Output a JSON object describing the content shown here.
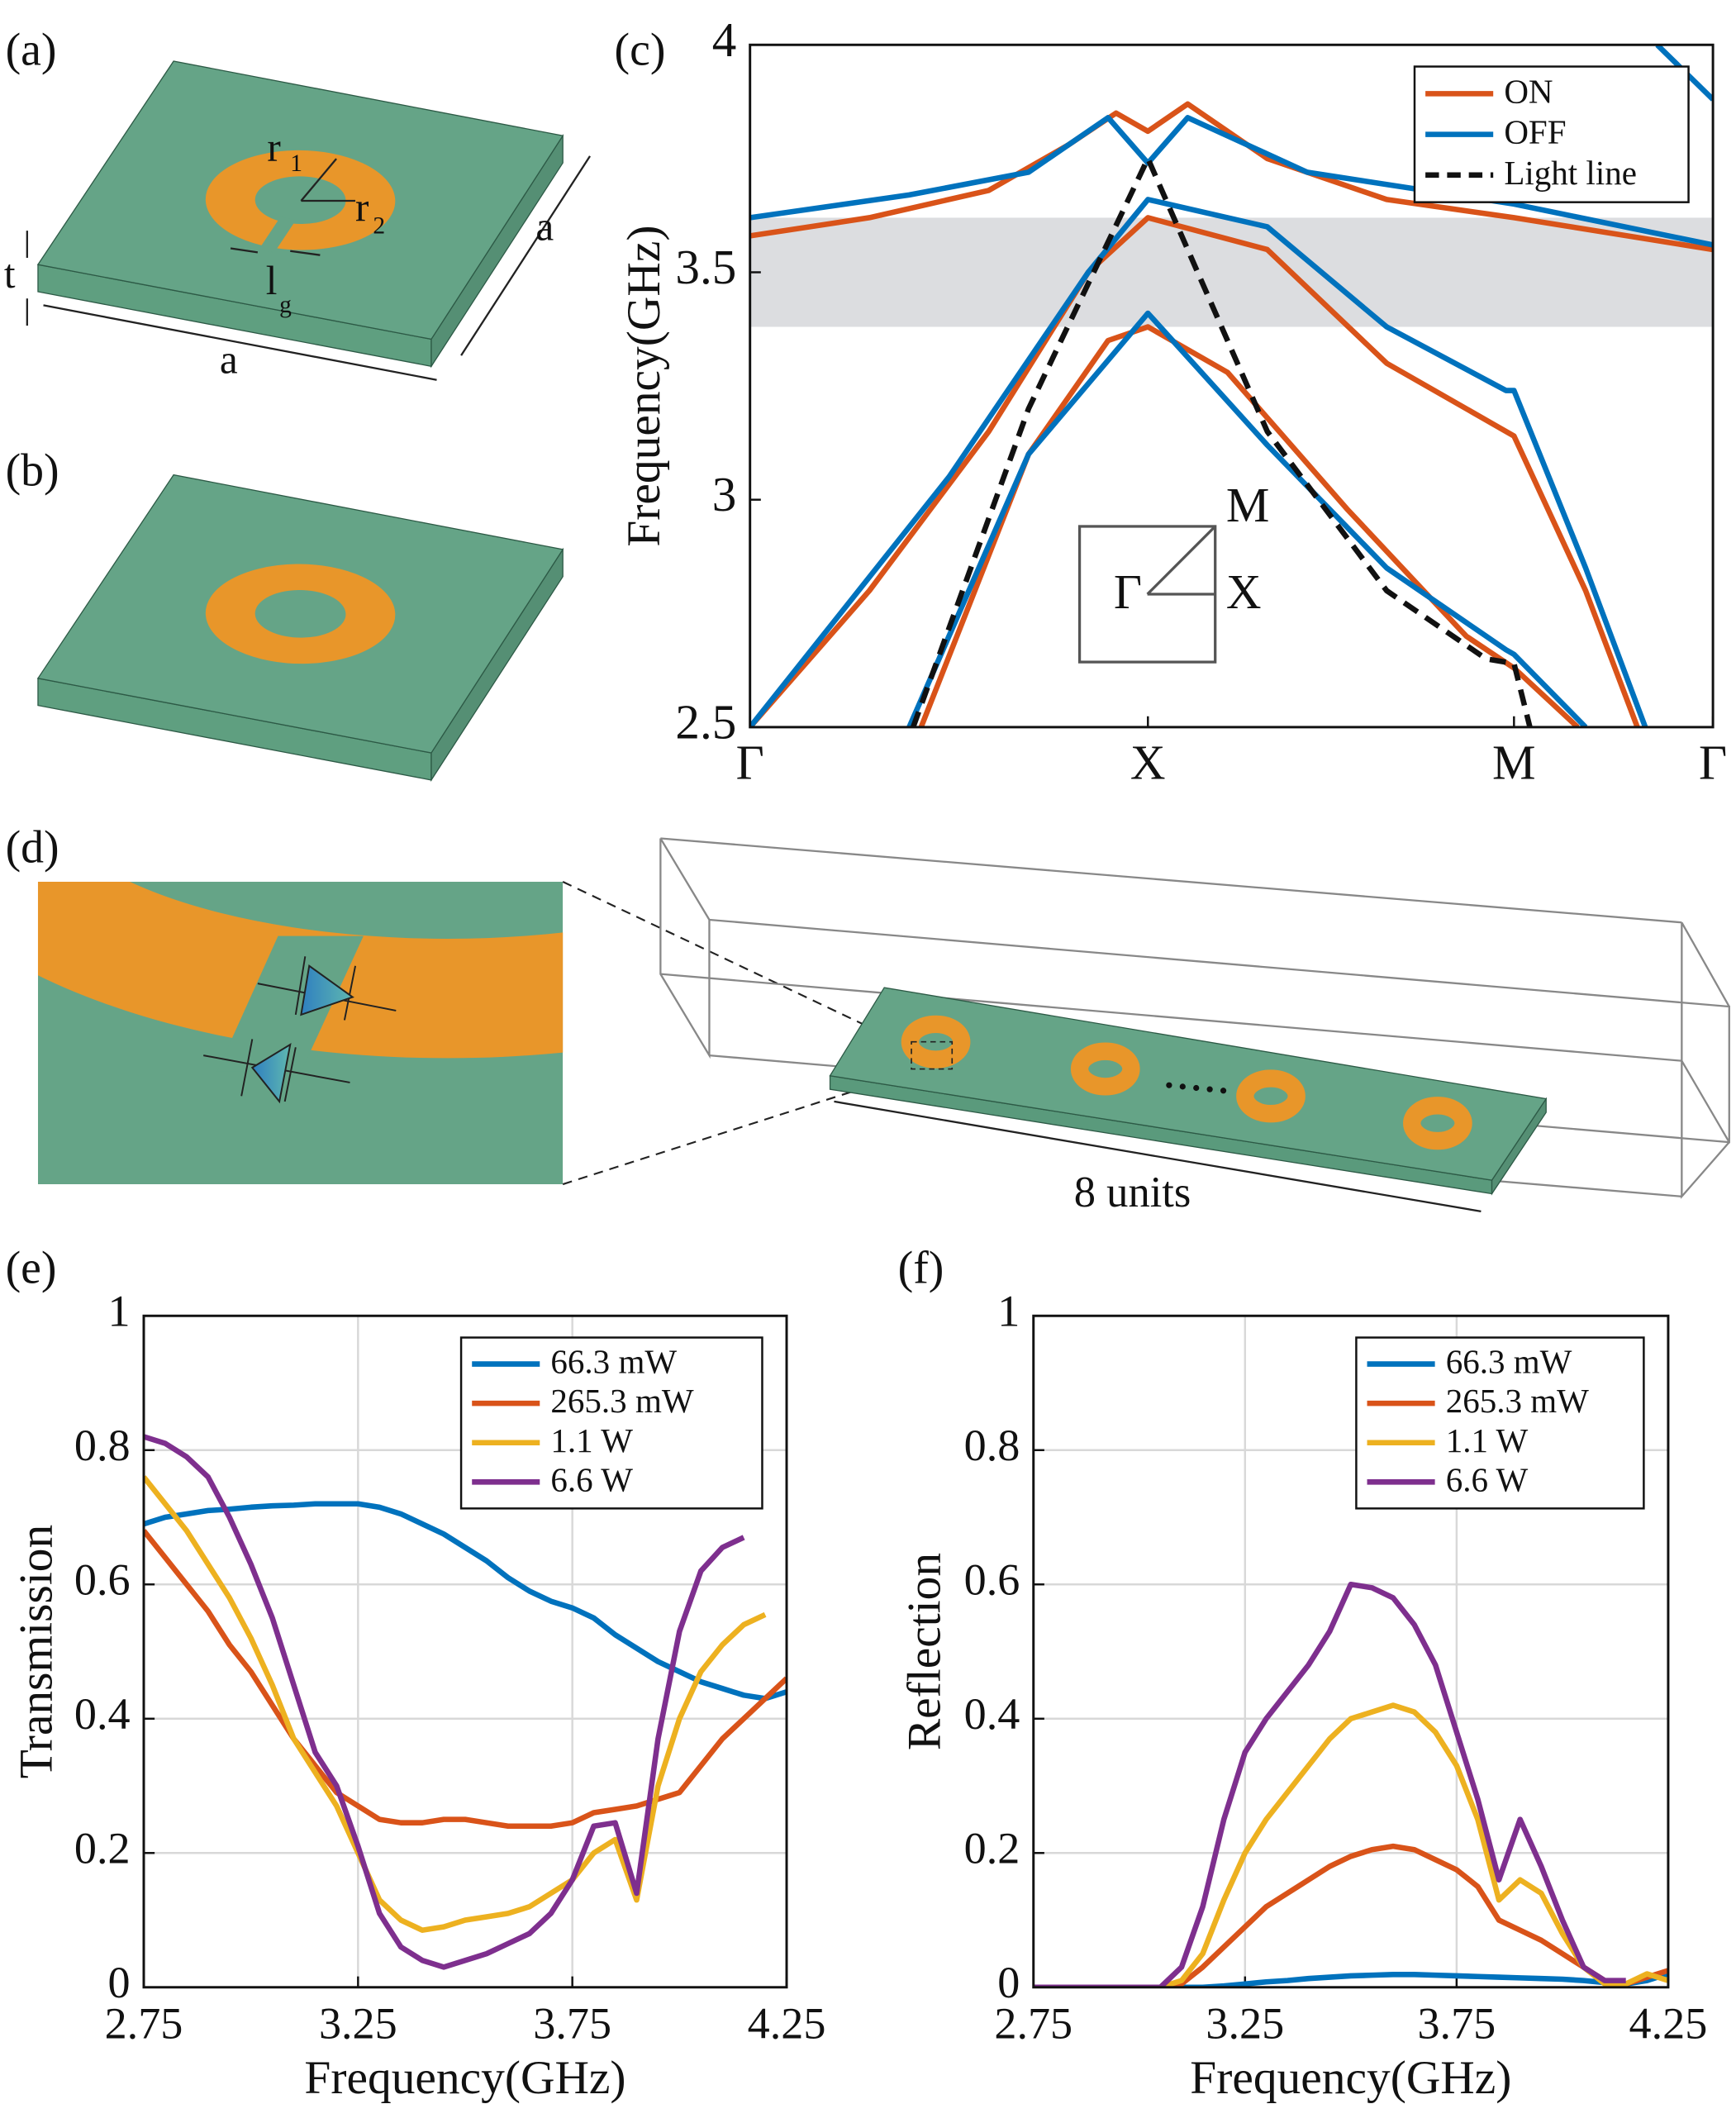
{
  "panel_labels": [
    "(a)",
    "(b)",
    "(c)",
    "(d)",
    "(e)",
    "(f)"
  ],
  "diagram": {
    "labels": [
      "r",
      "1",
      "r",
      "2",
      "l",
      "g",
      "t",
      "a",
      "a",
      "8 units"
    ]
  },
  "chart_data": [
    {
      "type": "line",
      "ylabel": "Frequency(GHz)",
      "xlim": [
        0,
        2.42
      ],
      "xticks": [
        {
          "value": 0,
          "label": "Γ"
        },
        {
          "value": 1,
          "label": "X"
        },
        {
          "value": 1.92,
          "label": "M"
        },
        {
          "value": 2.42,
          "label": "Γ"
        }
      ],
      "ylim": [
        2.5,
        4
      ],
      "yticks": [
        2.5,
        3,
        3.5,
        4
      ],
      "grid": false,
      "legend": "upper right",
      "band": [
        3.38,
        3.62
      ],
      "band_color": "#dcdde0",
      "annotations": [
        "M",
        "X",
        "Γ"
      ],
      "series": [
        {
          "name": "ON",
          "color": "#d95319",
          "linestyle": "solid",
          "x": [
            0,
            0.3,
            0.6,
            0.85,
            1,
            1.3,
            1.6,
            1.9,
            1.92,
            2.1,
            2.23,
            null,
            0.43,
            0.7,
            0.9,
            1,
            1.2,
            1.5,
            1.8,
            1.92,
            2.08,
            null,
            0,
            0.3,
            0.6,
            0.8,
            0.92,
            1,
            1.1,
            1.3,
            1.6,
            1.92,
            2.42
          ],
          "values": [
            2.5,
            2.8,
            3.15,
            3.5,
            3.62,
            3.55,
            3.3,
            3.15,
            3.14,
            2.8,
            2.5,
            null,
            2.5,
            3.1,
            3.35,
            3.38,
            3.28,
            2.98,
            2.7,
            2.63,
            2.5,
            null,
            3.58,
            3.62,
            3.68,
            3.78,
            3.85,
            3.81,
            3.87,
            3.75,
            3.66,
            3.62,
            3.55
          ]
        },
        {
          "name": "OFF",
          "color": "#0072bd",
          "linestyle": "solid",
          "x": [
            0.4,
            0.7,
            1,
            1.3,
            1.6,
            1.9,
            1.92,
            2.1,
            null,
            0,
            0.5,
            0.85,
            1,
            1.3,
            1.6,
            1.9,
            1.92,
            2.1,
            2.25,
            null,
            0,
            0.4,
            0.7,
            0.9,
            1,
            1.1,
            1.4,
            1.92,
            2.42,
            null,
            2.28,
            2.42
          ],
          "values": [
            2.5,
            3.1,
            3.41,
            3.12,
            2.85,
            2.67,
            2.66,
            2.5,
            null,
            2.5,
            3.05,
            3.5,
            3.66,
            3.6,
            3.38,
            3.24,
            3.24,
            2.85,
            2.5,
            null,
            3.62,
            3.67,
            3.72,
            3.84,
            3.74,
            3.84,
            3.72,
            3.65,
            3.56,
            null,
            4,
            3.88
          ]
        },
        {
          "name": "Light line",
          "color": "#111111",
          "linestyle": "dashed",
          "x": [
            0.41,
            0.7,
            1,
            1.3,
            1.6,
            1.85,
            1.92,
            1.96
          ],
          "values": [
            2.5,
            3.2,
            3.75,
            3.15,
            2.8,
            2.65,
            2.64,
            2.5
          ]
        }
      ]
    },
    {
      "type": "line",
      "xlabel": "Frequency(GHz)",
      "ylabel": "Transmission",
      "xlim": [
        2.75,
        4.25
      ],
      "xticks": [
        2.75,
        3.25,
        3.75,
        4.25
      ],
      "ylim": [
        0,
        1
      ],
      "yticks": [
        0,
        0.2,
        0.4,
        0.6,
        0.8,
        1
      ],
      "grid": true,
      "legend": "upper right",
      "x": [
        2.75,
        2.8,
        2.85,
        2.9,
        2.95,
        3.0,
        3.05,
        3.1,
        3.15,
        3.2,
        3.25,
        3.3,
        3.35,
        3.4,
        3.45,
        3.5,
        3.55,
        3.6,
        3.65,
        3.7,
        3.75,
        3.8,
        3.85,
        3.9,
        3.95,
        4.0,
        4.05,
        4.1,
        4.15,
        4.2,
        4.25
      ],
      "series": [
        {
          "name": "66.3 mW",
          "color": "#0072bd",
          "values": [
            0.69,
            0.7,
            0.705,
            0.71,
            0.712,
            0.715,
            0.717,
            0.718,
            0.72,
            0.72,
            0.72,
            0.715,
            0.705,
            0.69,
            0.675,
            0.655,
            0.635,
            0.61,
            0.59,
            0.575,
            0.565,
            0.55,
            0.525,
            0.505,
            0.485,
            0.47,
            0.455,
            0.445,
            0.435,
            0.43,
            0.44
          ]
        },
        {
          "name": "265.3 mW",
          "color": "#d95319",
          "values": [
            0.68,
            0.64,
            0.6,
            0.56,
            0.51,
            0.47,
            0.42,
            0.37,
            0.33,
            0.29,
            0.27,
            0.25,
            0.245,
            0.245,
            0.25,
            0.25,
            0.245,
            0.24,
            0.24,
            0.24,
            0.245,
            0.26,
            0.265,
            0.27,
            0.28,
            0.29,
            0.33,
            0.37,
            0.4,
            0.43,
            0.46
          ]
        },
        {
          "name": "1.1 W",
          "color": "#edb120",
          "values": [
            0.76,
            0.72,
            0.68,
            0.63,
            0.58,
            0.52,
            0.45,
            0.37,
            0.32,
            0.27,
            0.2,
            0.13,
            0.1,
            0.085,
            0.09,
            0.1,
            0.105,
            0.11,
            0.12,
            0.14,
            0.16,
            0.2,
            0.22,
            0.13,
            0.3,
            0.4,
            0.47,
            0.51,
            0.54,
            0.555,
            null
          ]
        },
        {
          "name": "6.6 W",
          "color": "#7e2f8e",
          "values": [
            0.82,
            0.81,
            0.79,
            0.76,
            0.7,
            0.63,
            0.55,
            0.45,
            0.35,
            0.3,
            0.21,
            0.11,
            0.06,
            0.04,
            0.03,
            0.04,
            0.05,
            0.065,
            0.08,
            0.11,
            0.16,
            0.24,
            0.245,
            0.14,
            0.37,
            0.53,
            0.62,
            0.655,
            0.67,
            null,
            null
          ]
        }
      ]
    },
    {
      "type": "line",
      "xlabel": "Frequency(GHz)",
      "ylabel": "Reflection",
      "xlim": [
        2.75,
        4.25
      ],
      "xticks": [
        2.75,
        3.25,
        3.75,
        4.25
      ],
      "ylim": [
        0,
        1
      ],
      "yticks": [
        0,
        0.2,
        0.4,
        0.6,
        0.8,
        1
      ],
      "grid": true,
      "legend": "upper right",
      "x": [
        2.75,
        2.8,
        2.85,
        2.9,
        2.95,
        3.0,
        3.05,
        3.1,
        3.15,
        3.2,
        3.25,
        3.3,
        3.35,
        3.4,
        3.45,
        3.5,
        3.55,
        3.6,
        3.65,
        3.7,
        3.75,
        3.8,
        3.85,
        3.9,
        3.95,
        4.0,
        4.05,
        4.1,
        4.15,
        4.2,
        4.25
      ],
      "series": [
        {
          "name": "66.3 mW",
          "color": "#0072bd",
          "values": [
            0,
            0,
            0,
            0,
            0,
            0,
            0,
            0,
            0,
            0.002,
            0.005,
            0.008,
            0.01,
            0.013,
            0.015,
            0.017,
            0.018,
            0.019,
            0.019,
            0.018,
            0.017,
            0.016,
            0.015,
            0.014,
            0.013,
            0.012,
            0.01,
            0.007,
            0.005,
            0.01,
            0.02
          ]
        },
        {
          "name": "265.3 mW",
          "color": "#d95319",
          "values": [
            0,
            0,
            0,
            0,
            0,
            0,
            0,
            0.005,
            0.03,
            0.06,
            0.09,
            0.12,
            0.14,
            0.16,
            0.18,
            0.195,
            0.205,
            0.21,
            0.205,
            0.19,
            0.175,
            0.15,
            0.1,
            0.085,
            0.07,
            0.05,
            0.03,
            0.01,
            0.005,
            0.015,
            0.025
          ]
        },
        {
          "name": "1.1 W",
          "color": "#edb120",
          "values": [
            0,
            0,
            0,
            0,
            0,
            0,
            0,
            0.01,
            0.05,
            0.13,
            0.2,
            0.25,
            0.29,
            0.33,
            0.37,
            0.4,
            0.41,
            0.42,
            0.41,
            0.38,
            0.33,
            0.25,
            0.13,
            0.16,
            0.14,
            0.08,
            0.03,
            0.005,
            0.005,
            0.02,
            0.01
          ]
        },
        {
          "name": "6.6 W",
          "color": "#7e2f8e",
          "values": [
            0,
            0,
            0,
            0,
            0,
            0,
            0,
            0.03,
            0.12,
            0.25,
            0.35,
            0.4,
            0.44,
            0.48,
            0.53,
            0.6,
            0.595,
            0.58,
            0.54,
            0.48,
            0.38,
            0.28,
            0.16,
            0.25,
            0.18,
            0.1,
            0.03,
            0.01,
            0.01,
            null,
            null
          ]
        }
      ]
    }
  ]
}
